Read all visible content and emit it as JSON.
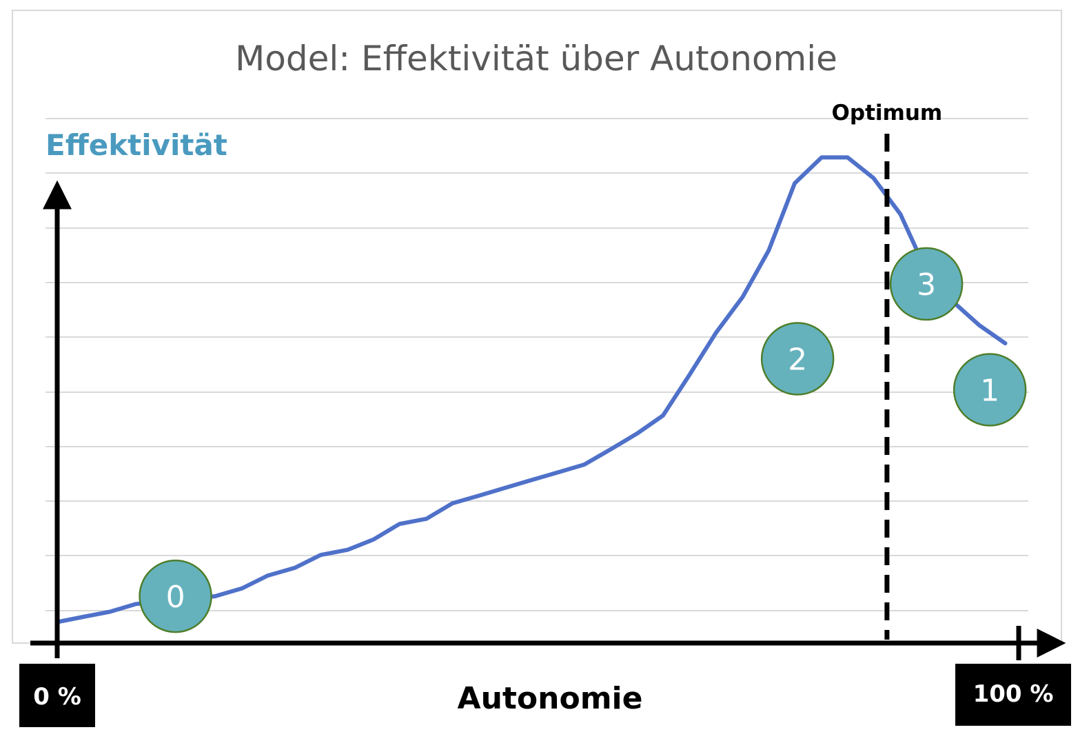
{
  "chart_data": {
    "type": "line",
    "title": "Model: Effektivität über Autonomie",
    "ylabel": "Effektivität",
    "xlabel": "Autonomie",
    "xlim": [
      0,
      100
    ],
    "ylim": [
      0,
      100
    ],
    "grid": true,
    "x_range_labels": {
      "min": "0 %",
      "max": "100 %"
    },
    "series": [
      {
        "color": "#4f71c9",
        "x": [
          0,
          2.7,
          5.5,
          8.2,
          11.0,
          13.7,
          16.4,
          19.2,
          21.9,
          24.7,
          27.4,
          30.2,
          32.9,
          35.6,
          38.4,
          41.1,
          43.9,
          46.6,
          49.3,
          52.1,
          54.8,
          57.6,
          60.3,
          63.0,
          65.8,
          68.5,
          71.3,
          74.0,
          76.7,
          79.5,
          82.2,
          84.9,
          87.7,
          90.4,
          93.2,
          95.9,
          98.6
        ],
        "y": [
          3,
          4,
          5,
          6.5,
          7,
          7.5,
          8,
          9.5,
          12,
          13.5,
          16,
          17,
          19,
          22,
          23,
          26,
          27.5,
          29,
          30.5,
          32,
          33.5,
          36.5,
          39.5,
          43,
          51,
          59,
          66,
          75,
          88,
          93,
          93,
          89,
          82,
          71,
          65,
          60.5,
          57
        ]
      }
    ],
    "annotations": [
      {
        "type": "vline",
        "x": 86.3,
        "label": "Optimum",
        "style": "dashed",
        "color": "#000000"
      }
    ],
    "markers": [
      {
        "label": "0",
        "x": 12.3,
        "y": 8,
        "color": "#65b2bd",
        "edge": "#4e7e2b"
      },
      {
        "label": "2",
        "x": 77.0,
        "y": 54,
        "color": "#65b2bd",
        "edge": "#4e7e2b"
      },
      {
        "label": "3",
        "x": 90.4,
        "y": 68.5,
        "color": "#65b2bd",
        "edge": "#4e7e2b"
      },
      {
        "label": "1",
        "x": 97.0,
        "y": 48,
        "color": "#65b2bd",
        "edge": "#4e7e2b"
      }
    ]
  }
}
